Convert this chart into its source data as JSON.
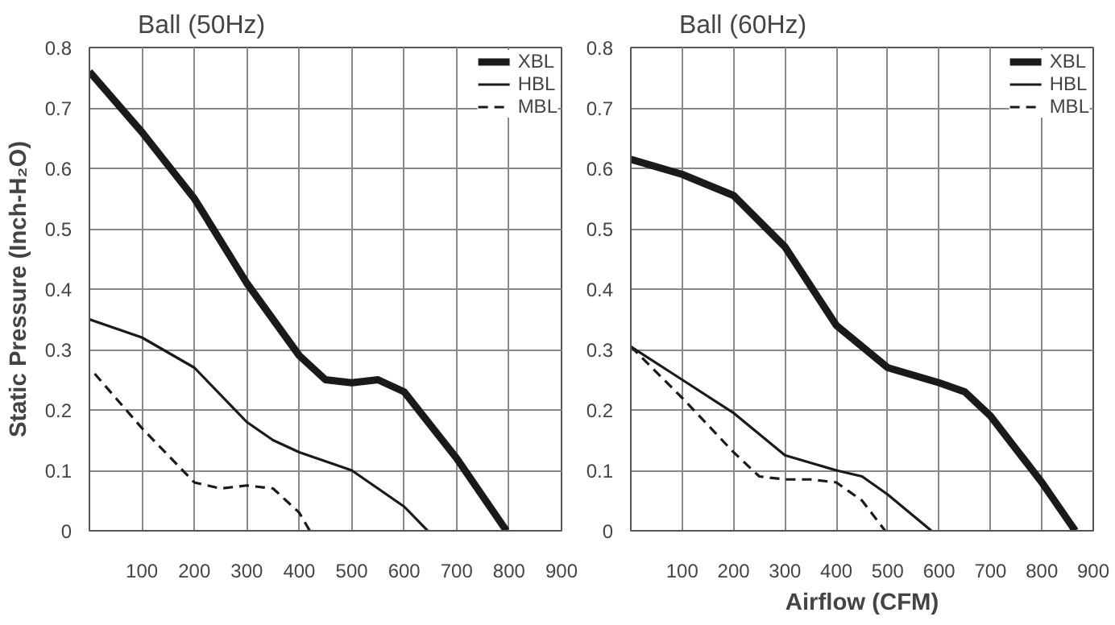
{
  "chart_data": [
    {
      "type": "line",
      "title": "Ball (50Hz)",
      "ylabel": "Static Pressure (Inch-H₂O)",
      "xlim": [
        0,
        900
      ],
      "ylim": [
        0,
        0.8
      ],
      "xticks": [
        100,
        200,
        300,
        400,
        500,
        600,
        700,
        800,
        900
      ],
      "yticks": [
        0,
        0.1,
        0.2,
        0.3,
        0.4,
        0.5,
        0.6,
        0.7,
        0.8
      ],
      "grid": true,
      "legend": "top right",
      "series": [
        {
          "name": "XBL",
          "color": "#1a1a1a",
          "line_style": "solid",
          "x": [
            0,
            100,
            200,
            300,
            400,
            450,
            500,
            550,
            600,
            700,
            795
          ],
          "values": [
            0.76,
            0.66,
            0.55,
            0.41,
            0.29,
            0.25,
            0.245,
            0.25,
            0.23,
            0.12,
            0
          ]
        },
        {
          "name": "HBL",
          "color": "#1a1a1a",
          "line_style": "solid",
          "x": [
            0,
            100,
            200,
            300,
            350,
            400,
            500,
            600,
            645
          ],
          "values": [
            0.35,
            0.32,
            0.27,
            0.18,
            0.15,
            0.13,
            0.1,
            0.04,
            0
          ]
        },
        {
          "name": "MBL",
          "color": "#1a1a1a",
          "line_style": "dashed",
          "x": [
            10,
            100,
            200,
            250,
            300,
            350,
            400,
            420
          ],
          "values": [
            0.26,
            0.17,
            0.08,
            0.07,
            0.075,
            0.07,
            0.03,
            0
          ]
        }
      ]
    },
    {
      "type": "line",
      "title": "Ball (60Hz)",
      "xlabel": "Airflow (CFM)",
      "xlim": [
        0,
        900
      ],
      "ylim": [
        0,
        0.8
      ],
      "xticks": [
        100,
        200,
        300,
        400,
        500,
        600,
        700,
        800,
        900
      ],
      "yticks": [
        0,
        0.1,
        0.2,
        0.3,
        0.4,
        0.5,
        0.6,
        0.7,
        0.8
      ],
      "grid": true,
      "legend": "top right",
      "series": [
        {
          "name": "XBL",
          "color": "#1a1a1a",
          "line_style": "solid",
          "x": [
            0,
            100,
            200,
            300,
            400,
            500,
            600,
            650,
            700,
            800,
            865
          ],
          "values": [
            0.615,
            0.59,
            0.555,
            0.47,
            0.34,
            0.27,
            0.245,
            0.23,
            0.19,
            0.08,
            0
          ]
        },
        {
          "name": "HBL",
          "color": "#1a1a1a",
          "line_style": "solid",
          "x": [
            0,
            100,
            200,
            300,
            400,
            450,
            500,
            585
          ],
          "values": [
            0.305,
            0.25,
            0.195,
            0.125,
            0.1,
            0.09,
            0.06,
            0
          ]
        },
        {
          "name": "MBL",
          "color": "#1a1a1a",
          "line_style": "dashed",
          "x": [
            0,
            100,
            200,
            250,
            300,
            350,
            400,
            450,
            495
          ],
          "values": [
            0.305,
            0.22,
            0.13,
            0.09,
            0.085,
            0.085,
            0.08,
            0.05,
            0
          ]
        }
      ]
    }
  ]
}
